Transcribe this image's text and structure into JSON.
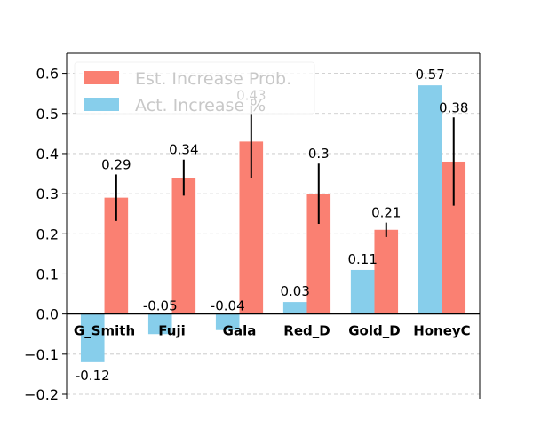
{
  "chart_data": {
    "type": "bar",
    "title": "",
    "xlabel": "",
    "ylabel": "",
    "ylim": [
      -0.2,
      0.65
    ],
    "yticks": [
      -0.2,
      -0.1,
      0.0,
      0.1,
      0.2,
      0.3,
      0.4,
      0.5,
      0.6
    ],
    "ytick_labels": [
      "−0.2",
      "−0.1",
      "0.0",
      "0.1",
      "0.2",
      "0.3",
      "0.4",
      "0.5",
      "0.6"
    ],
    "grid": "horizontal-dashed",
    "legend_position": "top-left",
    "categories": [
      "G_Smith",
      "Fuji",
      "Gala",
      "Red_D",
      "Gold_D",
      "HoneyC"
    ],
    "series": [
      {
        "name": "Act. Increase %",
        "color": "#87ceeb",
        "values": [
          -0.12,
          -0.05,
          -0.04,
          0.03,
          0.11,
          0.57
        ],
        "labels": [
          "-0.12",
          "-0.05",
          "-0.04",
          "0.03",
          "0.11",
          "0.57"
        ]
      },
      {
        "name": "Est. Increase Prob.",
        "color": "#fa8072",
        "values": [
          0.29,
          0.34,
          0.43,
          0.3,
          0.21,
          0.38
        ],
        "labels": [
          "0.29",
          "0.34",
          "0.43",
          "0.3",
          "0.21",
          "0.38"
        ],
        "error": [
          0.058,
          0.045,
          0.09,
          0.075,
          0.018,
          0.11
        ]
      }
    ],
    "legend_order": [
      "Est. Increase Prob.",
      "Act. Increase %"
    ]
  }
}
